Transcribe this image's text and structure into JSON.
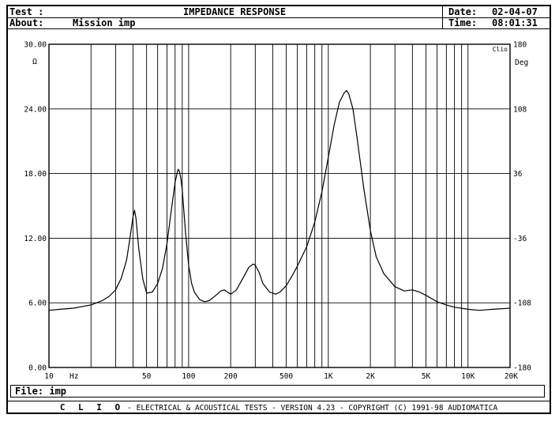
{
  "header": {
    "test_label": "Test :",
    "title": "IMPEDANCE RESPONSE",
    "date_label": "Date:",
    "date_value": "02-04-07",
    "about_label": "About:",
    "about_value": "Mission imp",
    "time_label": "Time:",
    "time_value": "08:01:31"
  },
  "file": {
    "label": "File:",
    "value": "imp"
  },
  "footer": {
    "brand": "C L I O",
    "text": "- ELECTRICAL & ACOUSTICAL TESTS - VERSION 4.23 - COPYRIGHT (C) 1991-98 AUDIOMATICA"
  },
  "chart_data": {
    "type": "line",
    "title": "IMPEDANCE RESPONSE",
    "xscale": "log",
    "xlim": [
      10,
      20000
    ],
    "ylim": [
      0,
      30
    ],
    "y2lim": [
      -180,
      180
    ],
    "xlabel": "Hz",
    "ylabel": "Ω",
    "y2label": "Deg",
    "corner_label": "Clio",
    "grid": true,
    "x_ticks": [
      {
        "value": 10,
        "label": "10"
      },
      {
        "value": 50,
        "label": "50"
      },
      {
        "value": 100,
        "label": "100"
      },
      {
        "value": 200,
        "label": "200"
      },
      {
        "value": 500,
        "label": "500"
      },
      {
        "value": 1000,
        "label": "1K"
      },
      {
        "value": 2000,
        "label": "2K"
      },
      {
        "value": 5000,
        "label": "5K"
      },
      {
        "value": 10000,
        "label": "10K"
      },
      {
        "value": 20000,
        "label": "20K"
      }
    ],
    "y_ticks": [
      {
        "value": 0,
        "label": "0.00"
      },
      {
        "value": 6,
        "label": "6.00"
      },
      {
        "value": 12,
        "label": "12.00"
      },
      {
        "value": 18,
        "label": "18.00"
      },
      {
        "value": 24,
        "label": "24.00"
      },
      {
        "value": 30,
        "label": "30.00"
      }
    ],
    "y2_ticks": [
      {
        "value": -180,
        "label": "-180"
      },
      {
        "value": -108,
        "label": "-108"
      },
      {
        "value": -36,
        "label": "-36"
      },
      {
        "value": 36,
        "label": "36"
      },
      {
        "value": 108,
        "label": "108"
      },
      {
        "value": 180,
        "label": "180"
      }
    ],
    "series": [
      {
        "x": [
          10,
          12,
          15,
          18,
          20,
          24,
          27,
          30,
          33,
          36,
          38,
          40,
          41,
          42,
          44,
          47,
          50,
          55,
          60,
          65,
          70,
          75,
          80,
          84,
          86,
          88,
          90,
          95,
          100,
          105,
          110,
          120,
          130,
          140,
          150,
          160,
          170,
          180,
          190,
          200,
          220,
          250,
          270,
          290,
          300,
          320,
          340,
          380,
          420,
          450,
          500,
          550,
          600,
          700,
          800,
          900,
          1000,
          1100,
          1200,
          1300,
          1350,
          1400,
          1500,
          1600,
          1800,
          2000,
          2200,
          2500,
          3000,
          3500,
          4000,
          4500,
          5000,
          6000,
          7000,
          8000,
          10000,
          12000,
          15000,
          20000
        ],
        "y": [
          5.3,
          5.4,
          5.5,
          5.7,
          5.8,
          6.2,
          6.6,
          7.2,
          8.3,
          10.0,
          12.0,
          14.0,
          14.6,
          13.8,
          11.0,
          8.2,
          6.9,
          7.0,
          7.8,
          9.2,
          11.5,
          14.5,
          17.2,
          18.4,
          18.2,
          17.5,
          16.5,
          12.5,
          9.5,
          7.8,
          7.0,
          6.3,
          6.1,
          6.2,
          6.5,
          6.8,
          7.1,
          7.2,
          7.0,
          6.8,
          7.2,
          8.5,
          9.3,
          9.6,
          9.5,
          8.8,
          7.8,
          7.0,
          6.8,
          7.0,
          7.6,
          8.5,
          9.4,
          11.2,
          13.5,
          16.3,
          19.5,
          22.5,
          24.6,
          25.5,
          25.7,
          25.4,
          24.0,
          21.5,
          16.5,
          12.7,
          10.3,
          8.7,
          7.5,
          7.1,
          7.2,
          7.0,
          6.7,
          6.1,
          5.8,
          5.6,
          5.4,
          5.3,
          5.4,
          5.5
        ]
      }
    ]
  }
}
